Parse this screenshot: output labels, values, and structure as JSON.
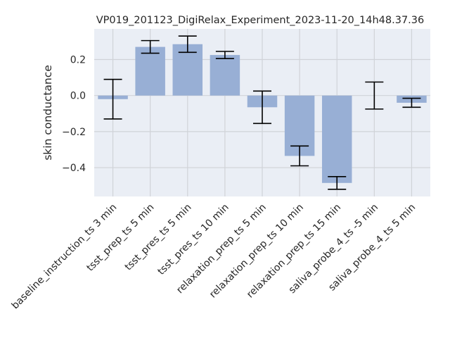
{
  "chart_data": {
    "type": "bar",
    "title": "VP019_201123_DigiRelax_Experiment_2023-11-20_14h48.37.36",
    "xlabel": "",
    "ylabel": "skin conductance",
    "ylim": [
      -0.56,
      0.37
    ],
    "yticks": [
      -0.4,
      -0.2,
      0.0,
      0.2
    ],
    "ytick_labels": [
      "−0.4",
      "−0.2",
      "0.0",
      "0.2"
    ],
    "grid": true,
    "categories": [
      "baseline_instruction_ts 3 min",
      "tsst_prep_ts 5 min",
      "tsst_pres_ts 5 min",
      "tsst_pres_ts 10 min",
      "relaxation_prep_ts 5 min",
      "relaxation_prep_ts 10 min",
      "relaxation_prep_ts 15 min",
      "saliva_probe_4_ts -5 min",
      "saliva_probe_4_ts 5 min"
    ],
    "values": [
      -0.02,
      0.27,
      0.285,
      0.225,
      -0.065,
      -0.335,
      -0.485,
      0.0,
      -0.04
    ],
    "errors": [
      0.11,
      0.035,
      0.045,
      0.02,
      0.09,
      0.055,
      0.035,
      0.075,
      0.025
    ],
    "bar_color": "#98afd5",
    "error_color": "#000000",
    "background_color": "#eaeef5",
    "grid_color": "#d0d3d8"
  }
}
